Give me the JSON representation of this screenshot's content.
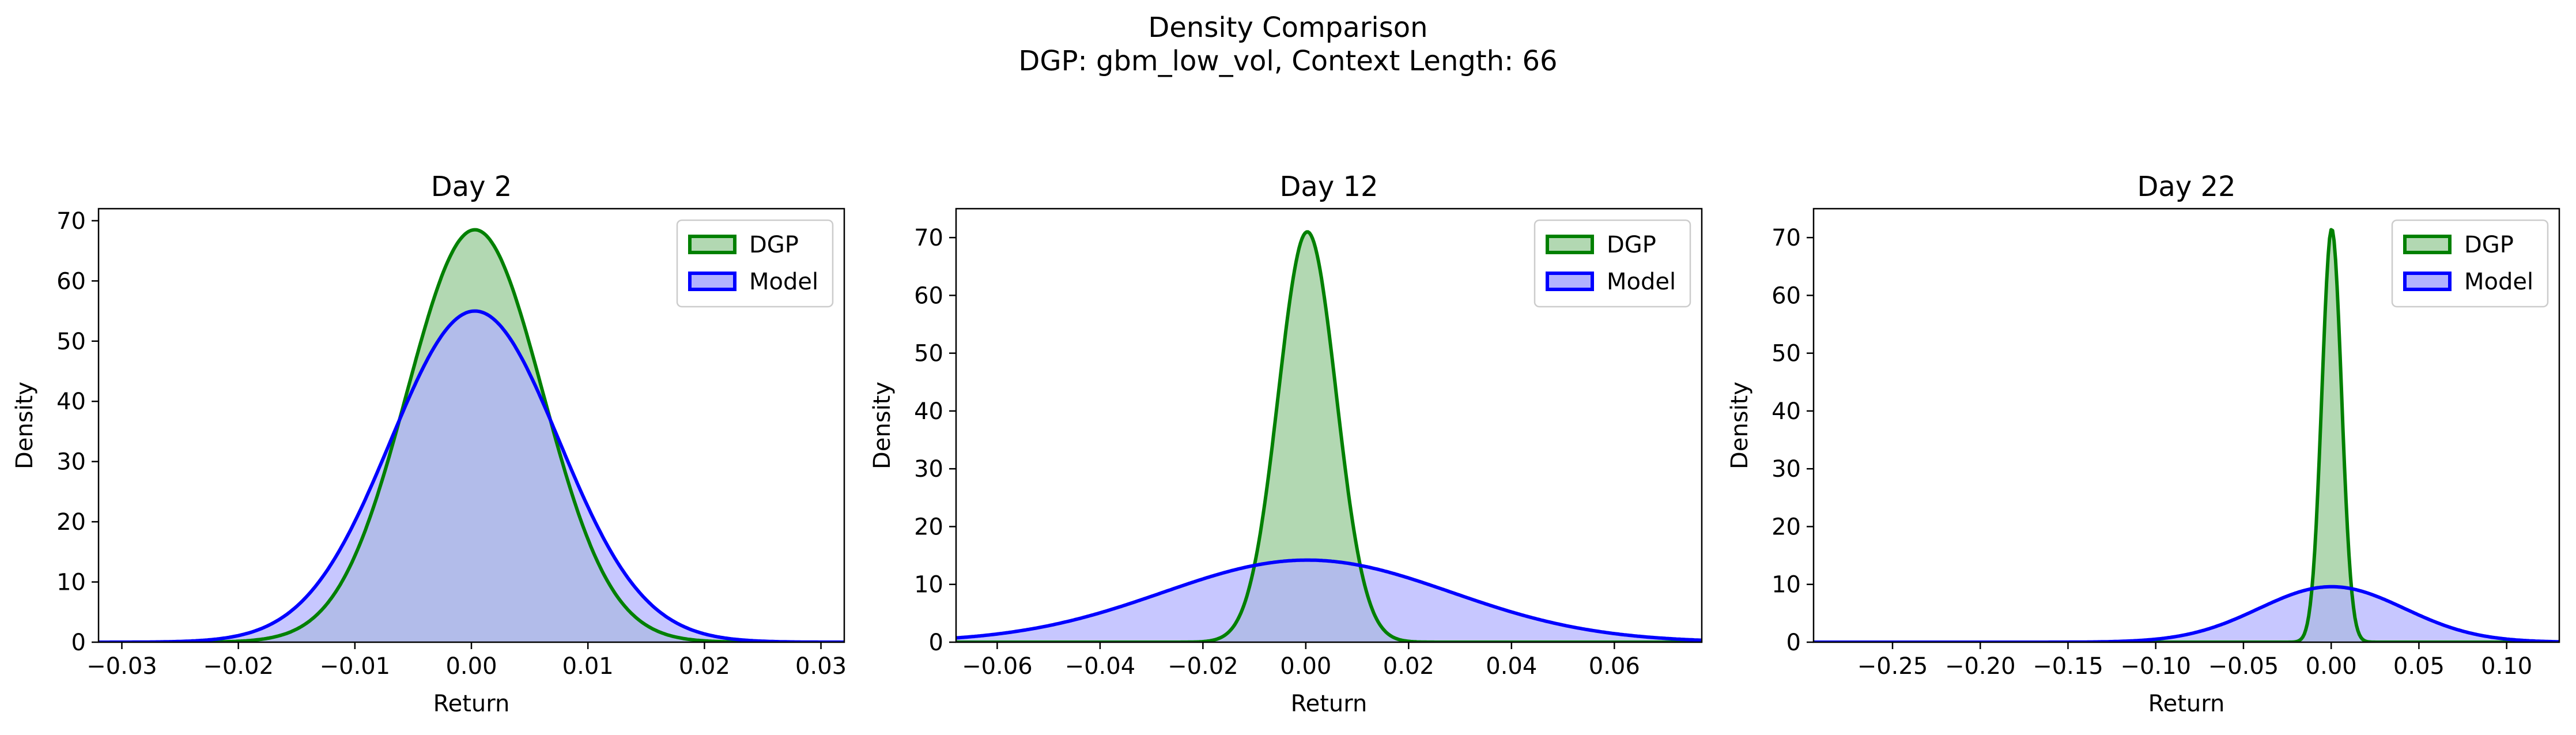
{
  "figure": {
    "title": "Density Comparison",
    "subtitle": "DGP: gbm_low_vol, Context Length: 66"
  },
  "colors": {
    "dgp_line": "#008000",
    "dgp_fill": "#b2d8b2",
    "model_line": "#0000ff",
    "model_fill": "#b2b2ff",
    "overlap": "#7f99c8"
  },
  "chart_data": [
    {
      "type": "area",
      "title": "Day 2",
      "xlabel": "Return",
      "ylabel": "Density",
      "xlim": [
        -0.032,
        0.032
      ],
      "ylim": [
        0,
        72
      ],
      "xticks": [
        -0.03,
        -0.02,
        -0.01,
        0.0,
        0.01,
        0.02,
        0.03
      ],
      "xtick_labels": [
        "−0.03",
        "−0.02",
        "−0.01",
        "0.00",
        "0.01",
        "0.02",
        "0.03"
      ],
      "yticks": [
        0,
        10,
        20,
        30,
        40,
        50,
        60,
        70
      ],
      "ytick_labels": [
        "0",
        "10",
        "20",
        "30",
        "40",
        "50",
        "60",
        "70"
      ],
      "legend": "top-right",
      "grid": false,
      "series": [
        {
          "name": "DGP",
          "mean": 0.0003,
          "peak_density": 68.5
        },
        {
          "name": "Model",
          "mean": 0.0003,
          "peak_density": 55.0
        }
      ]
    },
    {
      "type": "area",
      "title": "Day 12",
      "xlabel": "Return",
      "ylabel": "Density",
      "xlim": [
        -0.068,
        0.077
      ],
      "ylim": [
        0,
        75
      ],
      "xticks": [
        -0.06,
        -0.04,
        -0.02,
        0.0,
        0.02,
        0.04,
        0.06
      ],
      "xtick_labels": [
        "−0.06",
        "−0.04",
        "−0.02",
        "0.00",
        "0.02",
        "0.04",
        "0.06"
      ],
      "yticks": [
        0,
        10,
        20,
        30,
        40,
        50,
        60,
        70
      ],
      "ytick_labels": [
        "0",
        "10",
        "20",
        "30",
        "40",
        "50",
        "60",
        "70"
      ],
      "legend": "top-right",
      "grid": false,
      "series": [
        {
          "name": "DGP",
          "mean": 0.0003,
          "peak_density": 71.0
        },
        {
          "name": "Model",
          "mean": 0.0003,
          "peak_density": 14.2
        }
      ]
    },
    {
      "type": "area",
      "title": "Day 22",
      "xlabel": "Return",
      "ylabel": "Density",
      "xlim": [
        -0.295,
        0.13
      ],
      "ylim": [
        0,
        75
      ],
      "xticks": [
        -0.25,
        -0.2,
        -0.15,
        -0.1,
        -0.05,
        0.0,
        0.05,
        0.1
      ],
      "xtick_labels": [
        "−0.25",
        "−0.20",
        "−0.15",
        "−0.10",
        "−0.05",
        "0.00",
        "0.05",
        "0.10"
      ],
      "yticks": [
        0,
        10,
        20,
        30,
        40,
        50,
        60,
        70
      ],
      "ytick_labels": [
        "0",
        "10",
        "20",
        "30",
        "40",
        "50",
        "60",
        "70"
      ],
      "legend": "top-right",
      "grid": false,
      "series": [
        {
          "name": "DGP",
          "mean": 0.0003,
          "peak_density": 71.5
        },
        {
          "name": "Model",
          "mean": 0.0003,
          "peak_density": 9.6
        }
      ]
    }
  ]
}
